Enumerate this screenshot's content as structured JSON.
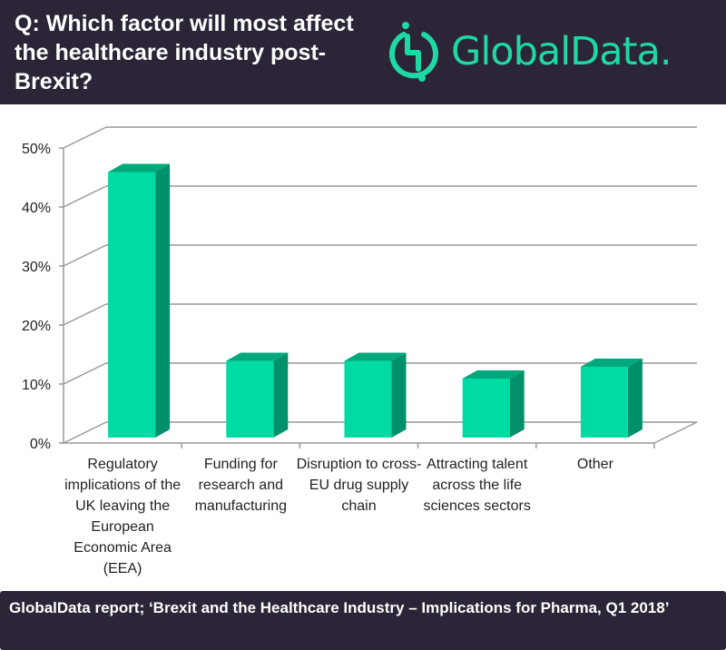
{
  "header": {
    "title": "Q: Which factor will most affect the healthcare industry post-Brexit?",
    "logo_text": "GlobalData.",
    "logo_icon": "globaldata-logo-icon"
  },
  "colors": {
    "background_dark": "#2b2537",
    "bar_front": "#00dba4",
    "bar_side": "#00906a",
    "bar_top": "#00a87c",
    "grid": "#999999",
    "logo": "#1fd9a5"
  },
  "chart_data": {
    "type": "bar",
    "title": "Q: Which factor will most affect the healthcare industry post-Brexit?",
    "xlabel": "",
    "ylabel": "",
    "ylim": [
      0,
      50
    ],
    "yticks": [
      "0%",
      "10%",
      "20%",
      "30%",
      "40%",
      "50%"
    ],
    "ytick_values": [
      0,
      10,
      20,
      30,
      40,
      50
    ],
    "grid": true,
    "style": "3d-column",
    "categories": [
      "Regulatory implications of the UK leaving the European Economic Area (EEA)",
      "Funding for research and manufacturing",
      "Disruption to cross-EU drug supply chain",
      "Attracting talent across the life sciences sectors",
      "Other"
    ],
    "values": [
      45,
      13,
      13,
      10,
      12
    ]
  },
  "footer": {
    "source": "GlobalData report; ‘Brexit and the Healthcare Industry – Implications for Pharma, Q1 2018’"
  }
}
